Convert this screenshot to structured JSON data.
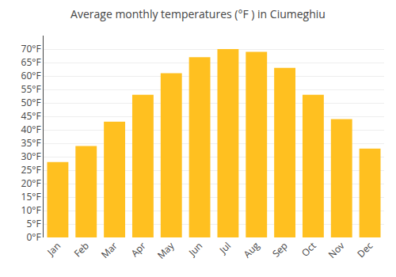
{
  "chart_data": {
    "type": "bar",
    "title": "Average monthly temperatures (°F ) in Ciumeghiu",
    "categories": [
      "Jan",
      "Feb",
      "Mar",
      "Apr",
      "May",
      "Jun",
      "Jul",
      "Aug",
      "Sep",
      "Oct",
      "Nov",
      "Dec"
    ],
    "values": [
      28,
      34,
      43,
      53,
      61,
      67,
      70,
      69,
      63,
      53,
      44,
      33
    ],
    "color": "#FFC020",
    "ylim": [
      0,
      75
    ],
    "yticks": [
      {
        "value": 0,
        "label": "0°F"
      },
      {
        "value": 5,
        "label": "5°F"
      },
      {
        "value": 10,
        "label": "10°F"
      },
      {
        "value": 15,
        "label": "15°F"
      },
      {
        "value": 20,
        "label": "20°F"
      },
      {
        "value": 25,
        "label": "25°F"
      },
      {
        "value": 30,
        "label": "30°F"
      },
      {
        "value": 35,
        "label": "35°F"
      },
      {
        "value": 40,
        "label": "40°F"
      },
      {
        "value": 45,
        "label": "45°F"
      },
      {
        "value": 50,
        "label": "50°F"
      },
      {
        "value": 55,
        "label": "55°F"
      },
      {
        "value": 60,
        "label": "60°F"
      },
      {
        "value": 65,
        "label": "65°F"
      },
      {
        "value": 70,
        "label": "70°F"
      }
    ],
    "grid": true
  }
}
